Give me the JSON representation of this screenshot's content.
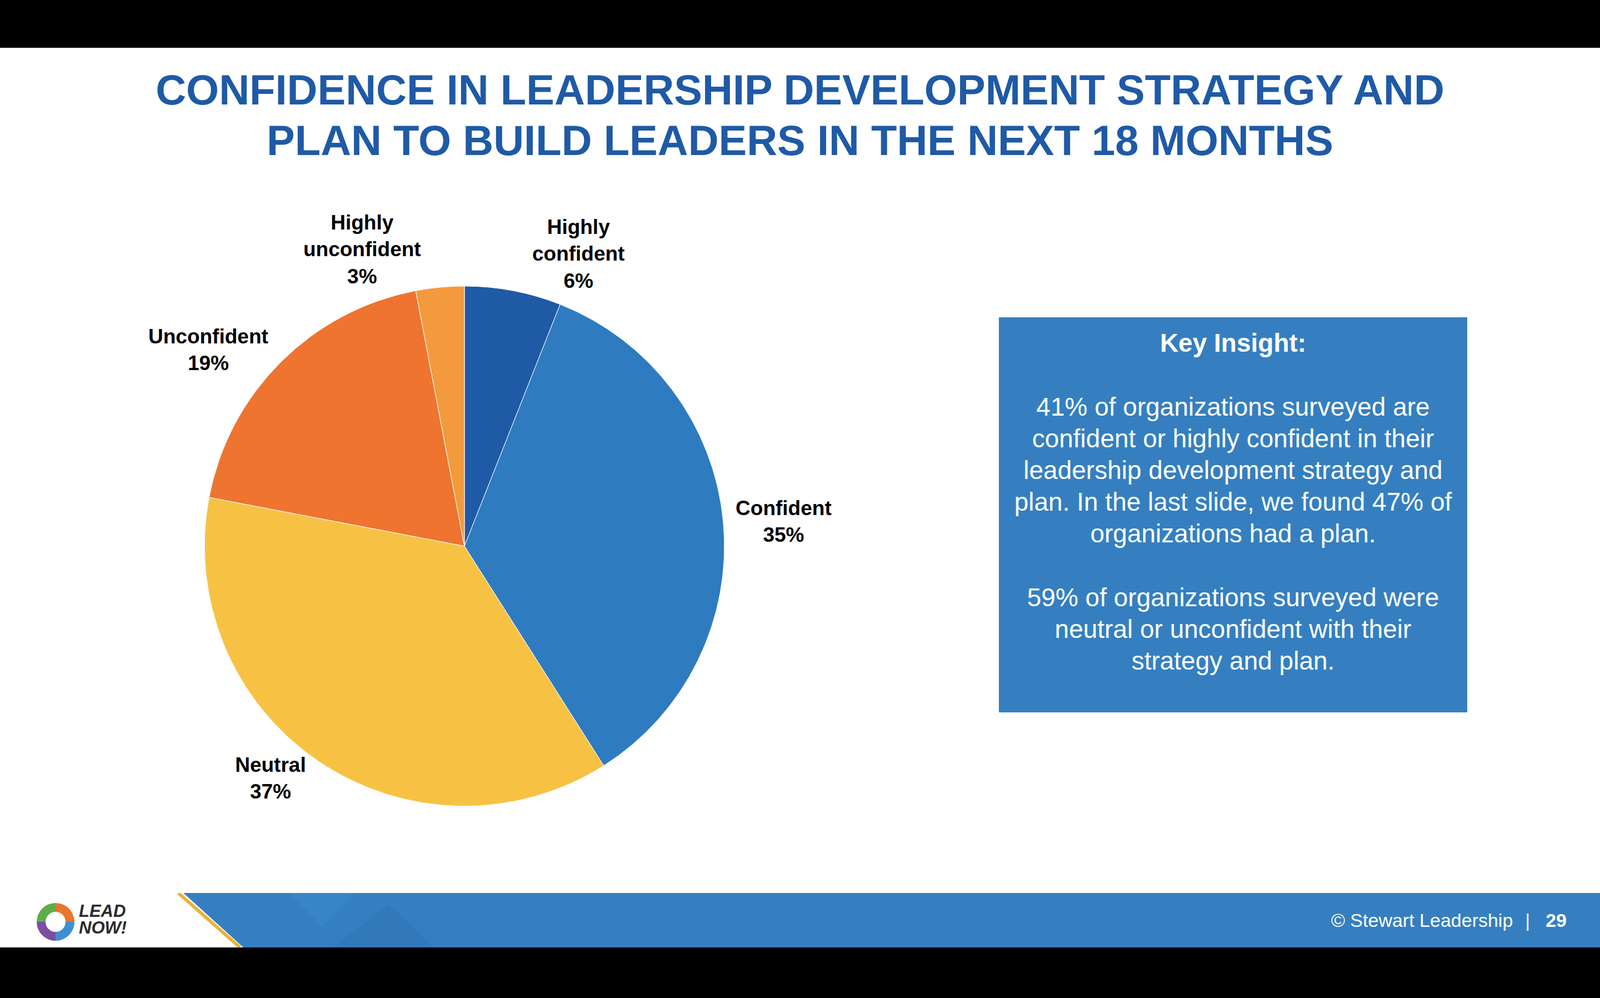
{
  "chart_data": {
    "type": "pie",
    "title": "CONFIDENCE IN LEADERSHIP DEVELOPMENT STRATEGY AND PLAN TO BUILD LEADERS IN THE NEXT 18 MONTHS",
    "categories": [
      "Highly confident",
      "Confident",
      "Neutral",
      "Unconfident",
      "Highly unconfident"
    ],
    "values": [
      6,
      35,
      37,
      19,
      3
    ],
    "value_labels": [
      "6%",
      "35%",
      "37%",
      "19%",
      "3%"
    ],
    "colors": [
      "#1F5AA6",
      "#2E7BBF",
      "#F7C244",
      "#EE7430",
      "#F39A3C"
    ],
    "data_labels": true
  },
  "key_insight": {
    "heading": "Key Insight:",
    "paragraphs": [
      "41% of organizations surveyed are confident or highly confident in their leadership development strategy and plan. In the last slide, we found 47% of organizations had a plan.",
      "59% of organizations surveyed were neutral or unconfident with their strategy and plan."
    ]
  },
  "footer": {
    "copyright": "© Stewart Leadership",
    "separator": "|",
    "page": 29
  },
  "logo": "LEAD NOW!"
}
